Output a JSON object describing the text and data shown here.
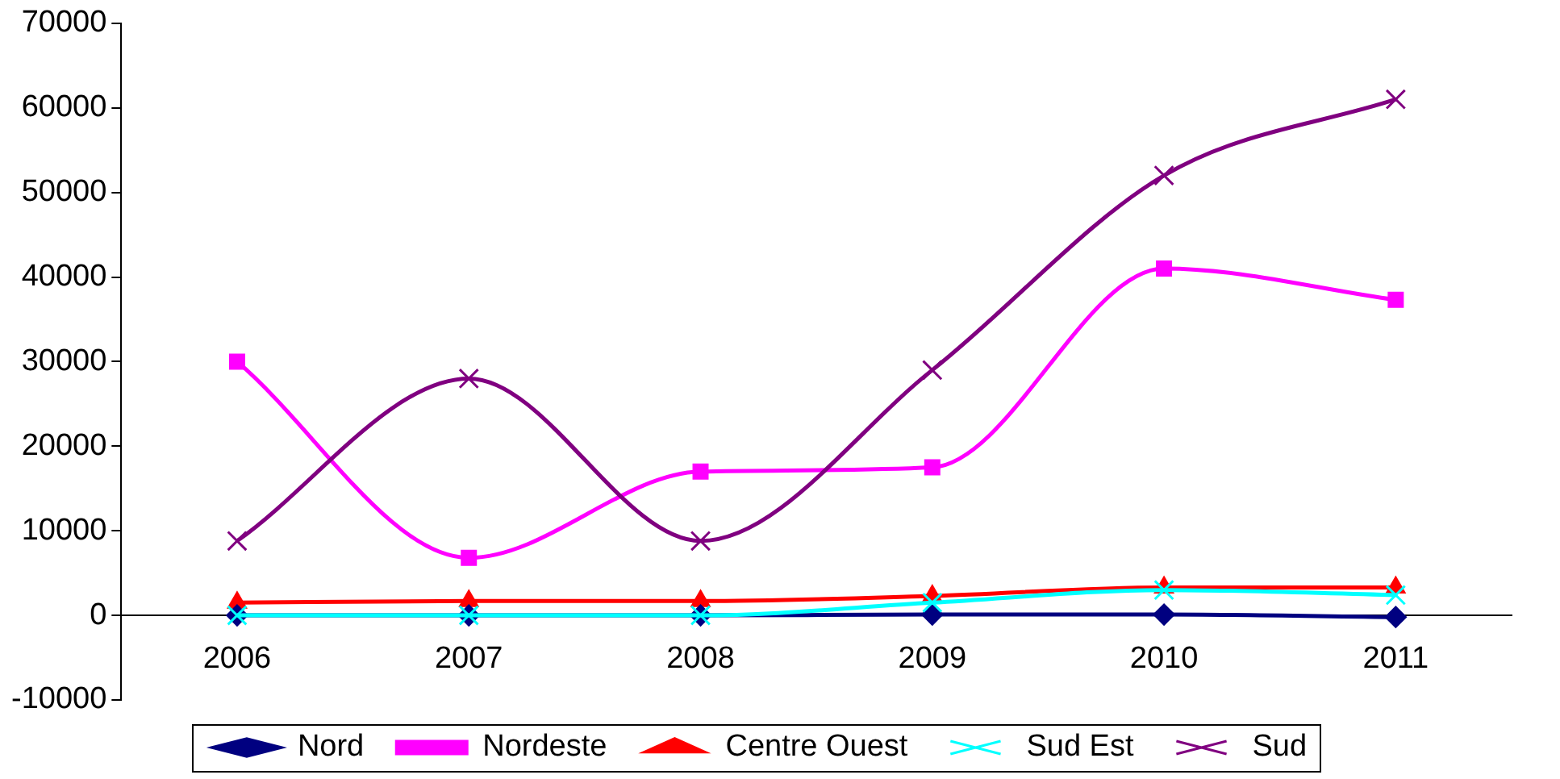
{
  "chart_data": {
    "type": "line",
    "categories": [
      "2006",
      "2007",
      "2008",
      "2009",
      "2010",
      "2011"
    ],
    "series": [
      {
        "name": "Nord",
        "color": "#000080",
        "marker": "diamond",
        "values": [
          0,
          0,
          0,
          100,
          100,
          -200
        ]
      },
      {
        "name": "Nordeste",
        "color": "#ff00ff",
        "marker": "square",
        "values": [
          30000,
          6800,
          17000,
          17500,
          41000,
          37300
        ]
      },
      {
        "name": "Centre Ouest",
        "color": "#ff0000",
        "marker": "triangle",
        "values": [
          1500,
          1700,
          1700,
          2300,
          3300,
          3300
        ]
      },
      {
        "name": "Sud Est",
        "color": "#00ffff",
        "marker": "cross",
        "values": [
          0,
          0,
          0,
          1500,
          3000,
          2400
        ]
      },
      {
        "name": "Sud",
        "color": "#800080",
        "marker": "cross",
        "values": [
          8800,
          28000,
          8800,
          29000,
          52000,
          61000
        ]
      }
    ],
    "ylim": [
      -10000,
      70000
    ],
    "yticks": [
      -10000,
      0,
      10000,
      20000,
      30000,
      40000,
      50000,
      60000,
      70000
    ],
    "grid": false,
    "legend": "bottom"
  }
}
